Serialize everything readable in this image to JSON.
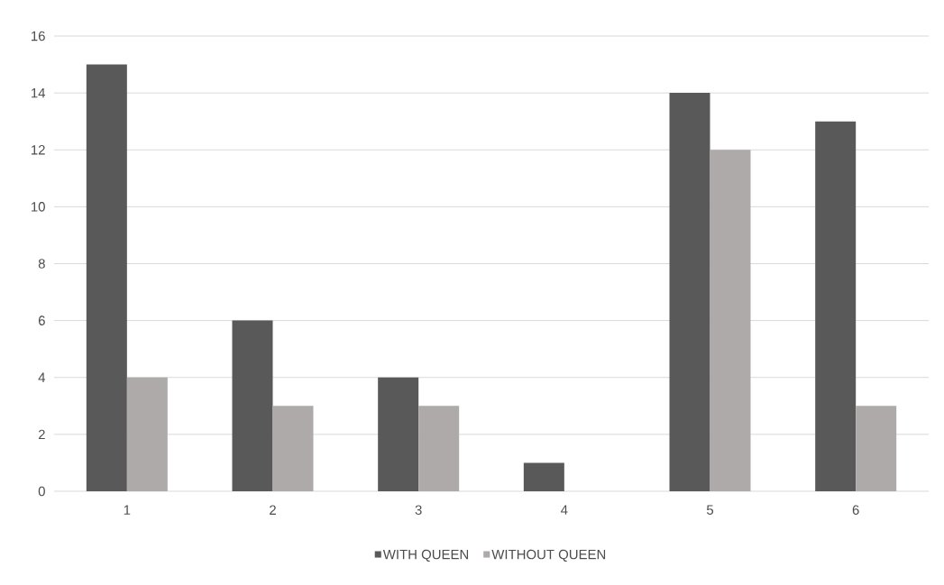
{
  "chart_data": {
    "type": "bar",
    "categories": [
      "1",
      "2",
      "3",
      "4",
      "5",
      "6"
    ],
    "series": [
      {
        "name": "WITH QUEEN",
        "color": "#595959",
        "values": [
          15,
          6,
          4,
          1,
          14,
          13
        ]
      },
      {
        "name": "WITHOUT QUEEN",
        "color": "#aeaaaa",
        "values": [
          4,
          3,
          3,
          0,
          12,
          3
        ]
      }
    ],
    "ylim": [
      0,
      16
    ],
    "yticks": [
      0,
      2,
      4,
      6,
      8,
      10,
      12,
      14,
      16
    ],
    "grid": "y",
    "legend": "bottom"
  }
}
